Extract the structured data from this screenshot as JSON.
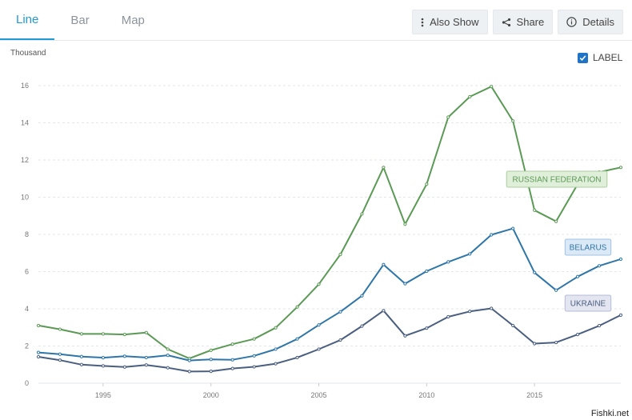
{
  "tabs": [
    {
      "label": "Line",
      "active": true
    },
    {
      "label": "Bar",
      "active": false
    },
    {
      "label": "Map",
      "active": false
    }
  ],
  "toolbar": {
    "also_show": {
      "label": "Also Show",
      "icon": "vertical-dots-icon"
    },
    "share": {
      "label": "Share",
      "icon": "share-icon"
    },
    "details": {
      "label": "Details",
      "icon": "info-icon"
    }
  },
  "label_toggle": {
    "label": "LABEL",
    "checked": true
  },
  "watermark": "Fishki.net",
  "chart_data": {
    "type": "line",
    "ylabel": "Thousand",
    "xlim": [
      1992,
      2019
    ],
    "ylim": [
      0,
      16
    ],
    "yticks": [
      0,
      2,
      4,
      6,
      8,
      10,
      12,
      14,
      16
    ],
    "xticks": [
      1995,
      2000,
      2005,
      2010,
      2015
    ],
    "grid": true,
    "x": [
      1992,
      1993,
      1994,
      1995,
      1996,
      1997,
      1998,
      1999,
      2000,
      2001,
      2002,
      2003,
      2004,
      2005,
      2006,
      2007,
      2008,
      2009,
      2010,
      2011,
      2012,
      2013,
      2014,
      2015,
      2016,
      2017,
      2018,
      2019
    ],
    "series": [
      {
        "name": "RUSSIAN FEDERATION",
        "color": "#5b9a55",
        "tag_bg": "#e0efd9",
        "tag_border": "#a8cf9c",
        "values": [
          3.1,
          2.9,
          2.65,
          2.65,
          2.62,
          2.72,
          1.83,
          1.33,
          1.77,
          2.1,
          2.38,
          2.98,
          4.1,
          5.32,
          6.92,
          9.1,
          11.6,
          8.55,
          10.7,
          14.3,
          15.4,
          15.95,
          14.1,
          9.3,
          8.7,
          10.7,
          11.35,
          11.6
        ]
      },
      {
        "name": "BELARUS",
        "color": "#2e75a8",
        "tag_bg": "#dbe9f6",
        "tag_border": "#9fc3e4",
        "values": [
          1.65,
          1.56,
          1.43,
          1.37,
          1.45,
          1.38,
          1.5,
          1.22,
          1.28,
          1.26,
          1.47,
          1.83,
          2.38,
          3.13,
          3.84,
          4.7,
          6.38,
          5.35,
          6.02,
          6.52,
          6.95,
          7.98,
          8.32,
          5.95,
          5.0,
          5.73,
          6.31,
          6.67
        ]
      },
      {
        "name": "UKRAINE",
        "color": "#4a5e7f",
        "tag_bg": "#e3e6f1",
        "tag_border": "#b4bbd8",
        "values": [
          1.42,
          1.24,
          1.0,
          0.93,
          0.87,
          0.98,
          0.83,
          0.63,
          0.64,
          0.79,
          0.88,
          1.05,
          1.38,
          1.83,
          2.32,
          3.07,
          3.9,
          2.55,
          2.96,
          3.57,
          3.86,
          4.02,
          3.1,
          2.13,
          2.19,
          2.62,
          3.09,
          3.66
        ]
      }
    ]
  }
}
